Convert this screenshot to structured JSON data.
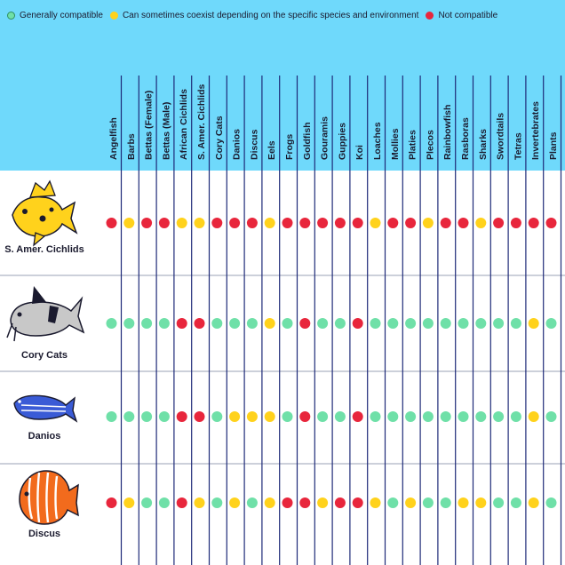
{
  "legend": {
    "compatible": "Generally compatible",
    "sometimes": "Can sometimes coexist depending on the specific species and environment",
    "not": "Not compatible"
  },
  "colors": {
    "header_bg": "#6fd9fb",
    "green": "#6fe0a8",
    "yellow": "#ffd21c",
    "red": "#e8263c",
    "column_line": "#1e2a78",
    "row_line": "#9aa0b4"
  },
  "columns": [
    "Angelfish",
    "Barbs",
    "Bettas (Female)",
    "Bettas (Male)",
    "African Cichlids",
    "S. Amer. Cichlids",
    "Cory Cats",
    "Danios",
    "Discus",
    "Eels",
    "Frogs",
    "Goldfish",
    "Gouramis",
    "Guppies",
    "Koi",
    "Loaches",
    "Mollies",
    "Platies",
    "Plecos",
    "Rainbowfish",
    "Rasboras",
    "Sharks",
    "Swordtails",
    "Tetras",
    "Invertebrates",
    "Plants"
  ],
  "rows": [
    {
      "label": "S. Amer. Cichlids",
      "icon": "cichlid-fish-icon",
      "values": [
        "R",
        "Y",
        "R",
        "R",
        "Y",
        "Y",
        "R",
        "R",
        "R",
        "Y",
        "R",
        "R",
        "R",
        "R",
        "R",
        "Y",
        "R",
        "R",
        "Y",
        "R",
        "R",
        "Y",
        "R",
        "R",
        "R",
        "R"
      ]
    },
    {
      "label": "Cory Cats",
      "icon": "catfish-icon",
      "values": [
        "G",
        "G",
        "G",
        "G",
        "R",
        "R",
        "G",
        "G",
        "G",
        "Y",
        "G",
        "R",
        "G",
        "G",
        "R",
        "G",
        "G",
        "G",
        "G",
        "G",
        "G",
        "G",
        "G",
        "G",
        "Y",
        "G"
      ]
    },
    {
      "label": "Danios",
      "icon": "danio-fish-icon",
      "values": [
        "G",
        "G",
        "G",
        "G",
        "R",
        "R",
        "G",
        "Y",
        "Y",
        "Y",
        "G",
        "R",
        "G",
        "G",
        "R",
        "G",
        "G",
        "G",
        "G",
        "G",
        "G",
        "G",
        "G",
        "G",
        "Y",
        "G"
      ]
    },
    {
      "label": "Discus",
      "icon": "discus-fish-icon",
      "values": [
        "R",
        "Y",
        "G",
        "G",
        "R",
        "Y",
        "G",
        "Y",
        "G",
        "Y",
        "R",
        "R",
        "Y",
        "R",
        "R",
        "Y",
        "G",
        "Y",
        "G",
        "G",
        "Y",
        "Y",
        "G",
        "G",
        "Y",
        "G"
      ]
    }
  ]
}
